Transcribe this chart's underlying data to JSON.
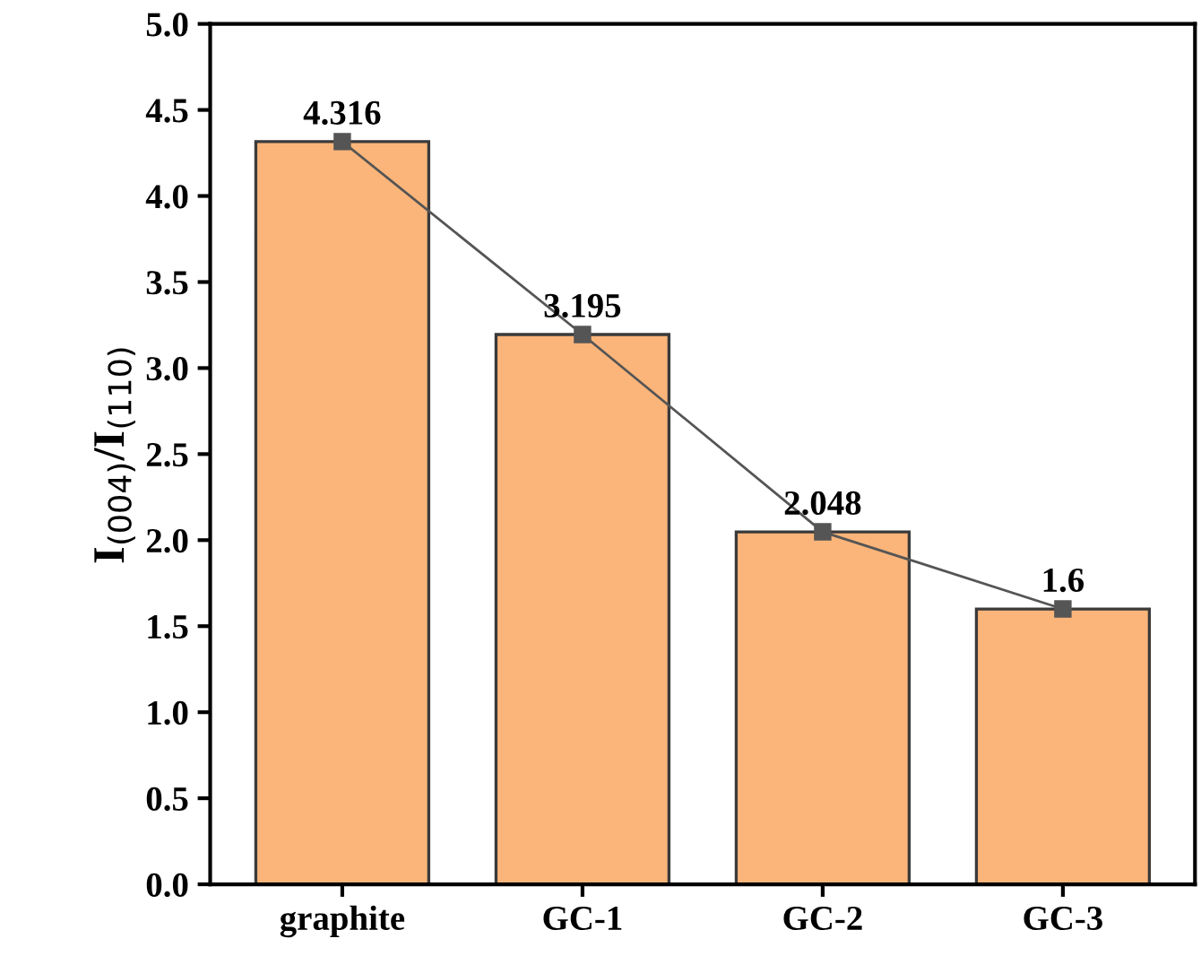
{
  "chart_data": {
    "type": "bar",
    "ylabel": "I$_{(004)}$/I$_{(110)}$",
    "categories": [
      "graphite",
      "GC-1",
      "GC-2",
      "GC-3"
    ],
    "series": [
      {
        "color": "#fbb57a",
        "values": [
          4.316,
          3.195,
          2.048,
          1.6
        ],
        "value_labels": [
          "4.316",
          "3.195",
          "2.048",
          "1.6"
        ]
      },
      {
        "type": "line",
        "color": "#555555",
        "marker": "square",
        "values": [
          4.316,
          3.195,
          2.048,
          1.6
        ]
      }
    ],
    "ylim": [
      0,
      5
    ],
    "yticks": [
      {
        "value": 0,
        "label": "0.0"
      },
      {
        "value": 0.5,
        "label": "0.5"
      },
      {
        "value": 1,
        "label": "1.0"
      },
      {
        "value": 1.5,
        "label": "1.5"
      },
      {
        "value": 2,
        "label": "2.0"
      },
      {
        "value": 2.5,
        "label": "2.5"
      },
      {
        "value": 3,
        "label": "3.0"
      },
      {
        "value": 3.5,
        "label": "3.5"
      },
      {
        "value": 4,
        "label": "4.0"
      },
      {
        "value": 4.5,
        "label": "4.5"
      },
      {
        "value": 5,
        "label": "5.0"
      }
    ],
    "grid": false
  }
}
